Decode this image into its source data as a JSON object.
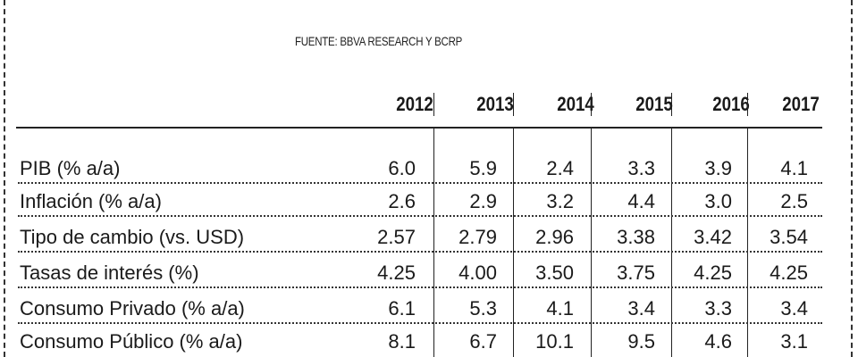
{
  "source": "FUENTE: BBVA RESEARCH Y BCRP",
  "years": [
    "2012",
    "2013",
    "2014",
    "2015",
    "2016",
    "2017"
  ],
  "rows": [
    {
      "label": "PIB (% a/a)",
      "values": [
        "6.0",
        "5.9",
        "2.4",
        "3.3",
        "3.9",
        "4.1"
      ]
    },
    {
      "label": "Inflación (% a/a)",
      "values": [
        "2.6",
        "2.9",
        "3.2",
        "4.4",
        "3.0",
        "2.5"
      ]
    },
    {
      "label": "Tipo de cambio (vs. USD)",
      "values": [
        "2.57",
        "2.79",
        "2.96",
        "3.38",
        "3.42",
        "3.54"
      ]
    },
    {
      "label": "Tasas de interés (%)",
      "values": [
        "4.25",
        "4.00",
        "3.50",
        "3.75",
        "4.25",
        "4.25"
      ]
    },
    {
      "label": "Consumo Privado (% a/a)",
      "values": [
        "6.1",
        "5.3",
        "4.1",
        "3.4",
        "3.3",
        "3.4"
      ]
    },
    {
      "label": "Consumo Público (% a/a)",
      "values": [
        "8.1",
        "6.7",
        "10.1",
        "9.5",
        "4.6",
        "3.1"
      ]
    }
  ]
}
